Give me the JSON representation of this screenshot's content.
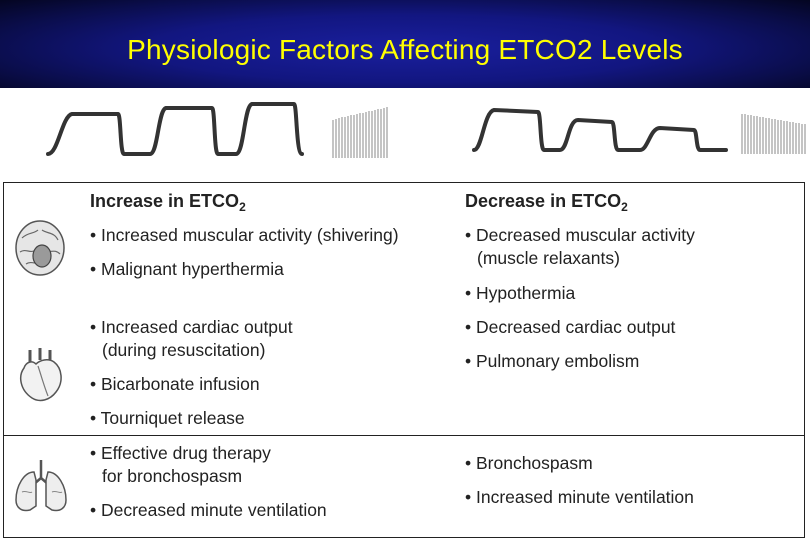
{
  "title": "Physiologic Factors Affecting ETCO2 Levels",
  "table": {
    "increase_header": "Increase in ETCO",
    "decrease_header": "Decrease in ETCO",
    "header_sub": "2",
    "rows": {
      "metabolic": {
        "increase": [
          [
            "• Increased muscular activity (shivering)"
          ],
          [
            "• Malignant hyperthermia"
          ]
        ],
        "decrease": [
          [
            "• Decreased muscular activity",
            "(muscle relaxants)"
          ],
          [
            "• Hypothermia"
          ]
        ]
      },
      "cardiac": {
        "increase": [
          [
            "• Increased cardiac output",
            "(during resuscitation)"
          ],
          [
            "• Bicarbonate infusion"
          ],
          [
            "• Tourniquet release"
          ]
        ],
        "decrease": [
          [
            "• Decreased cardiac output"
          ],
          [
            "• Pulmonary embolism"
          ]
        ]
      },
      "respiratory": {
        "increase": [
          [
            "• Effective drug therapy",
            "for bronchospasm"
          ],
          [
            "• Decreased minute ventilation"
          ]
        ],
        "decrease": [
          [
            "• Bronchospasm"
          ],
          [
            "• Increased minute ventilation"
          ]
        ]
      }
    }
  },
  "icons": [
    "brain-icon",
    "heart-icon",
    "lungs-icon"
  ]
}
